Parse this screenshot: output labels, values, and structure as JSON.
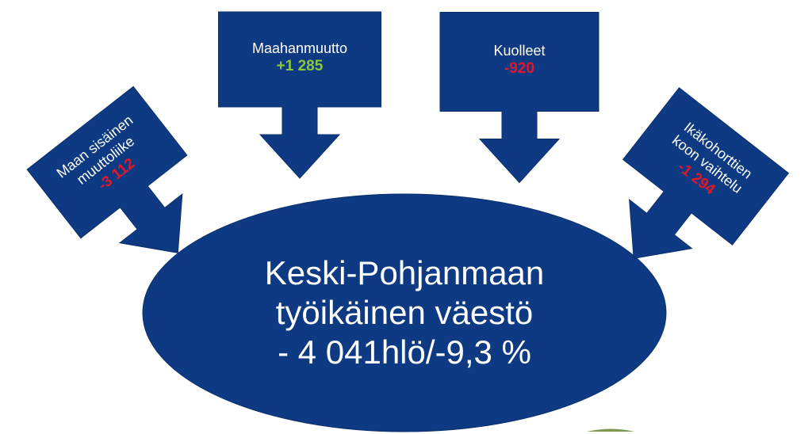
{
  "center": {
    "lines": [
      "Keski-Pohjanmaan",
      "työikäinen  väestö",
      "- 4 041hlö/-9,3  %"
    ]
  },
  "nodes": [
    {
      "label": [
        "Maan sisäinen",
        "muuttoliike"
      ],
      "value": "-3 112"
    },
    {
      "label": [
        "Maahanmuutto"
      ],
      "value": "+1 285"
    },
    {
      "label": [
        "Kuolleet"
      ],
      "value": "-920"
    },
    {
      "label": [
        "Ikäkohorttien",
        "koon vaihtelu"
      ],
      "value": "-1 294"
    }
  ]
}
